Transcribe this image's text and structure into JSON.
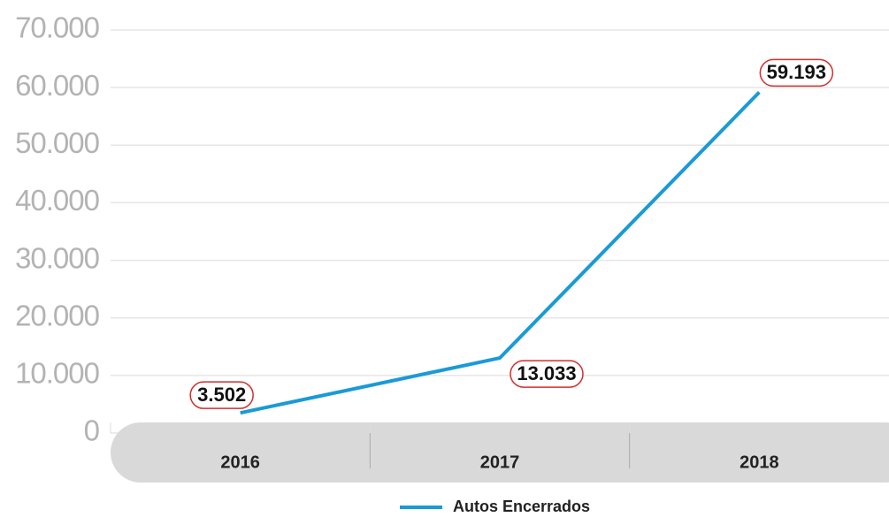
{
  "chart_data": {
    "type": "line",
    "categories": [
      "2016",
      "2017",
      "2018"
    ],
    "series": [
      {
        "name": "Autos Encerrados",
        "color": "#1a9ad6",
        "values": [
          3502,
          13033,
          59193
        ],
        "value_labels": [
          "3.502",
          "13.033",
          "59.193"
        ]
      }
    ],
    "ylim": [
      0,
      70000
    ],
    "yticks": [
      0,
      {
        "value": 10000,
        "label": "10.000"
      },
      {
        "value": 20000,
        "label": "20.000"
      },
      {
        "value": 30000,
        "label": "30.000"
      },
      {
        "value": 40000,
        "label": "40.000"
      },
      {
        "value": 50000,
        "label": "50.000"
      },
      {
        "value": 60000,
        "label": "60.000"
      },
      {
        "value": 70000,
        "label": "70.000"
      }
    ],
    "grid": true,
    "legend": "bottom"
  }
}
